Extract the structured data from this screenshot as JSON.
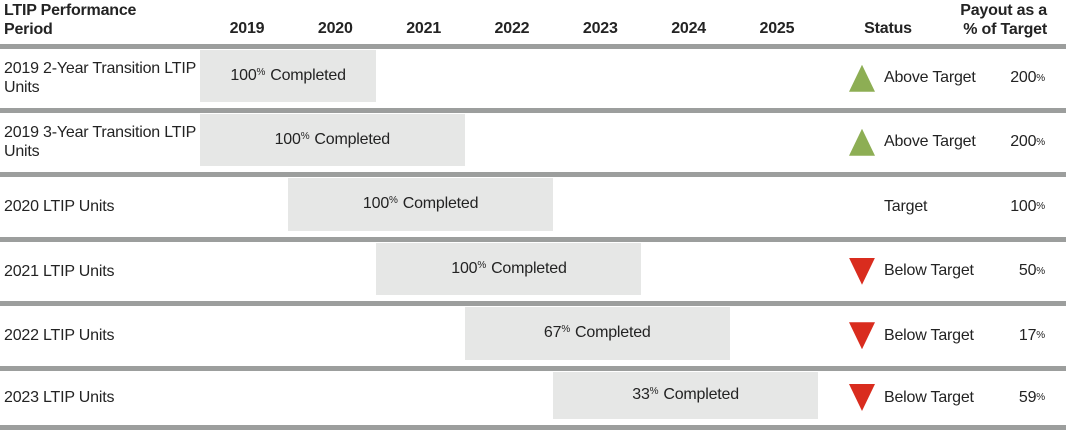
{
  "header": {
    "period_column_label": "LTIP Performance Period",
    "years": [
      "2019",
      "2020",
      "2021",
      "2022",
      "2023",
      "2024",
      "2025"
    ],
    "status_column_label": "Status",
    "payout_column_label_line1": "Payout as a",
    "payout_column_label_line2": "% of Target"
  },
  "labels": {
    "completed_word": "Completed"
  },
  "symbols": {
    "percent": "%"
  },
  "colors": {
    "above_target_green": "#8DAE54",
    "below_target_red": "#D92C1E",
    "bar_fill_gray": "#E6E7E6",
    "divider_gray": "#9C9E9D",
    "text_dark": "#232323"
  },
  "chart_data": {
    "type": "gantt",
    "title": "LTIP Performance Period",
    "x_axis_years": [
      2019,
      2020,
      2021,
      2022,
      2023,
      2024,
      2025
    ],
    "legend": {
      "up_triangle": "Above Target",
      "down_triangle": "Below Target"
    },
    "rows": [
      {
        "label": "2019 2-Year Transition LTIP Units",
        "start_year": 2019,
        "end_year": 2020,
        "completed_value": "100",
        "completed_pct": 100,
        "status": "Above Target",
        "status_direction": "up",
        "payout_value": "200",
        "payout_pct_of_target": 200
      },
      {
        "label": "2019 3-Year Transition LTIP Units",
        "start_year": 2019,
        "end_year": 2021,
        "completed_value": "100",
        "completed_pct": 100,
        "status": "Above Target",
        "status_direction": "up",
        "payout_value": "200",
        "payout_pct_of_target": 200
      },
      {
        "label": "2020 LTIP Units",
        "start_year": 2020,
        "end_year": 2022,
        "completed_value": "100",
        "completed_pct": 100,
        "status": "Target",
        "status_direction": "none",
        "payout_value": "100",
        "payout_pct_of_target": 100
      },
      {
        "label": "2021 LTIP Units",
        "start_year": 2021,
        "end_year": 2023,
        "completed_value": "100",
        "completed_pct": 100,
        "status": "Below Target",
        "status_direction": "down",
        "payout_value": "50",
        "payout_pct_of_target": 50
      },
      {
        "label": "2022 LTIP Units",
        "start_year": 2022,
        "end_year": 2024,
        "completed_value": "67",
        "completed_pct": 67,
        "status": "Below Target",
        "status_direction": "down",
        "payout_value": "17",
        "payout_pct_of_target": 17
      },
      {
        "label": "2023 LTIP Units",
        "start_year": 2023,
        "end_year": 2025,
        "completed_value": "33",
        "completed_pct": 33,
        "status": "Below Target",
        "status_direction": "down",
        "payout_value": "59",
        "payout_pct_of_target": 59
      }
    ]
  }
}
